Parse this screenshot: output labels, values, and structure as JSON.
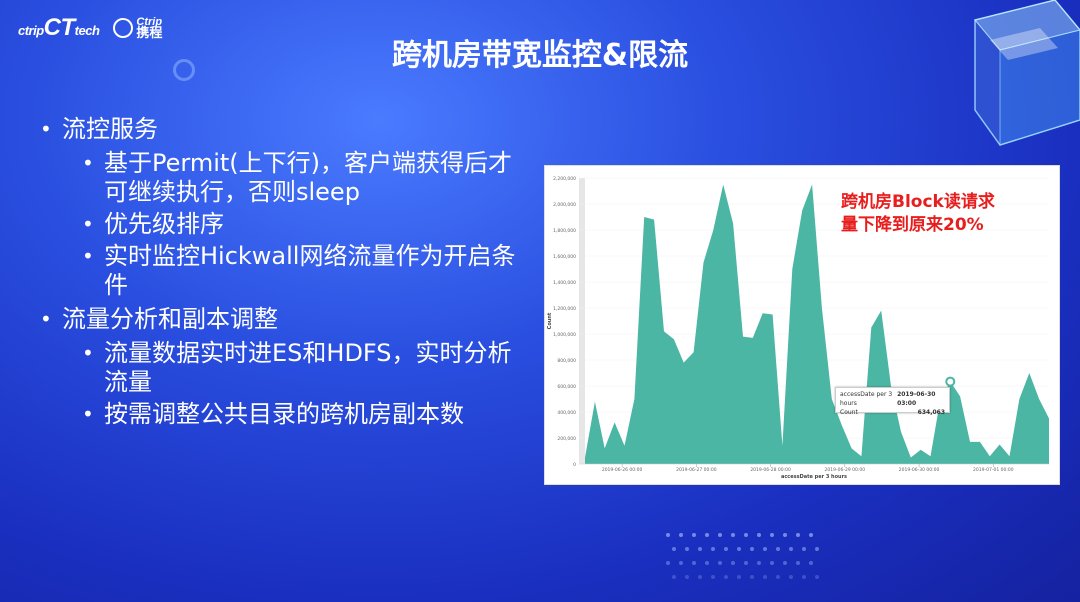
{
  "logos": {
    "ctrip_tech_prefix": "ctrip",
    "ctrip_tech_mark": "CT",
    "ctrip_tech_suffix": "tech",
    "ctrip_en": "Ctrip",
    "ctrip_cn": "携程"
  },
  "title": "跨机房带宽监控&限流",
  "bullets": [
    {
      "text": "流控服务",
      "children": [
        "基于Permit(上下行)，客户端获得后才可继续执行，否则sleep",
        "优先级排序",
        "实时监控Hickwall网络流量作为开启条件"
      ]
    },
    {
      "text": "流量分析和副本调整",
      "children": [
        "流量数据实时进ES和HDFS，实时分析流量",
        "按需调整公共目录的跨机房副本数"
      ]
    }
  ],
  "chart_annotation": [
    "跨机房Block读请求",
    "量下降到原来20%"
  ],
  "tooltip": {
    "k1": "accessDate per 3 hours",
    "v1": "2019-06-30 03:00",
    "k2": "Count",
    "v2": "634,063"
  },
  "colors": {
    "area": "#4bb6a4",
    "annotation": "#e81e1e",
    "background": "#2a4fe0"
  },
  "chart_data": {
    "type": "area",
    "xlabel": "accessDate per 3 hours",
    "ylabel": "Count",
    "ylim": [
      0,
      2200000
    ],
    "y_ticks": [
      "0",
      "200,000",
      "400,000",
      "600,000",
      "800,000",
      "1,000,000",
      "1,200,000",
      "1,400,000",
      "1,600,000",
      "1,800,000",
      "2,000,000",
      "2,200,000"
    ],
    "x_ticks": [
      "2019-06-26 00:00",
      "2019-06-27 00:00",
      "2019-06-28 00:00",
      "2019-06-29 00:00",
      "2019-06-30 00:00",
      "2019-07-01 00:00"
    ],
    "x_range": [
      "2019-06-25 12:00",
      "2019-07-01 18:00"
    ],
    "series": [
      {
        "values": [
          50000,
          480000,
          120000,
          320000,
          140000,
          500000,
          1900000,
          1880000,
          1020000,
          960000,
          780000,
          860000,
          1550000,
          1800000,
          2150000,
          1850000,
          980000,
          970000,
          1160000,
          1150000,
          140000,
          1500000,
          1950000,
          2150000,
          1200000,
          500000,
          300000,
          120000,
          60000,
          1050000,
          1180000,
          600000,
          250000,
          50000,
          110000,
          60000,
          500000,
          634063,
          520000,
          170000,
          170000,
          60000,
          150000,
          60000,
          500000,
          700000,
          500000,
          350000
        ]
      }
    ]
  }
}
